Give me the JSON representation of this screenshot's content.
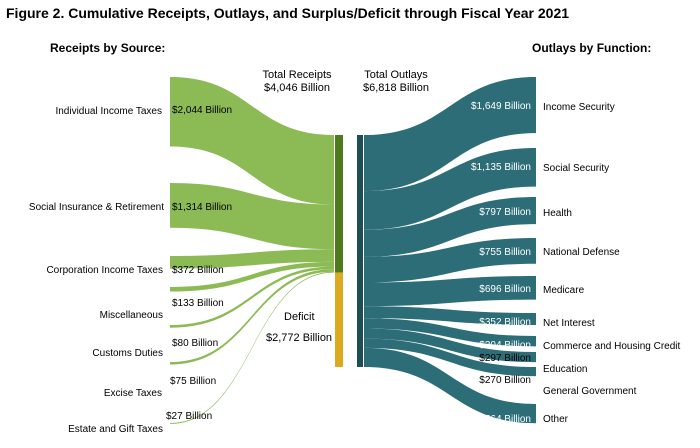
{
  "figure": {
    "title": "Figure 2. Cumulative Receipts, Outlays, and Surplus/Deficit through Fiscal Year 2021",
    "receipts_heading": "Receipts by Source:",
    "outlays_heading": "Outlays by Function:",
    "total_receipts_label": "Total Receipts",
    "total_receipts_value": "$4,046 Billion",
    "total_outlays_label": "Total Outlays",
    "total_outlays_value": "$6,818 Billion",
    "deficit_label": "Deficit",
    "deficit_value": "$2,772 Billion"
  },
  "colors": {
    "receipts": "#8cba55",
    "receipts_bar": "#4f7a1e",
    "deficit": "#dcaa1e",
    "outlays": "#2c6d78",
    "outlays_bar": "#1d4e56"
  },
  "chart_data": {
    "type": "sankey",
    "title": "Figure 2. Cumulative Receipts, Outlays, and Surplus/Deficit through Fiscal Year 2021",
    "units": "Billion",
    "receipts": [
      {
        "name": "Individual Income Taxes",
        "value": 2044,
        "value_label": "$2,044 Billion"
      },
      {
        "name": "Social Insurance & Retirement",
        "value": 1314,
        "value_label": "$1,314 Billion"
      },
      {
        "name": "Corporation Income Taxes",
        "value": 372,
        "value_label": "$372 Billion"
      },
      {
        "name": "Miscellaneous",
        "value": 133,
        "value_label": "$133 Billion"
      },
      {
        "name": "Customs Duties",
        "value": 80,
        "value_label": "$80 Billion"
      },
      {
        "name": "Excise Taxes",
        "value": 75,
        "value_label": "$75 Billion"
      },
      {
        "name": "Estate and Gift Taxes",
        "value": 27,
        "value_label": "$27 Billion"
      }
    ],
    "total_receipts": 4046,
    "deficit": 2772,
    "total_outlays": 6818,
    "outlays": [
      {
        "name": "Income Security",
        "value": 1649,
        "value_label": "$1,649 Billion"
      },
      {
        "name": "Social Security",
        "value": 1135,
        "value_label": "$1,135 Billion"
      },
      {
        "name": "Health",
        "value": 797,
        "value_label": "$797 Billion"
      },
      {
        "name": "National Defense",
        "value": 755,
        "value_label": "$755 Billion"
      },
      {
        "name": "Medicare",
        "value": 696,
        "value_label": "$696 Billion"
      },
      {
        "name": "Net Interest",
        "value": 352,
        "value_label": "$352 Billion"
      },
      {
        "name": "Commerce and Housing Credit",
        "value": 304,
        "value_label": "$304 Billion"
      },
      {
        "name": "Education",
        "value": 297,
        "value_label": "$297 Billion"
      },
      {
        "name": "General Government",
        "value": 270,
        "value_label": "$270 Billion"
      },
      {
        "name": "Other",
        "value": 564,
        "value_label": "$564 Billion"
      }
    ]
  }
}
